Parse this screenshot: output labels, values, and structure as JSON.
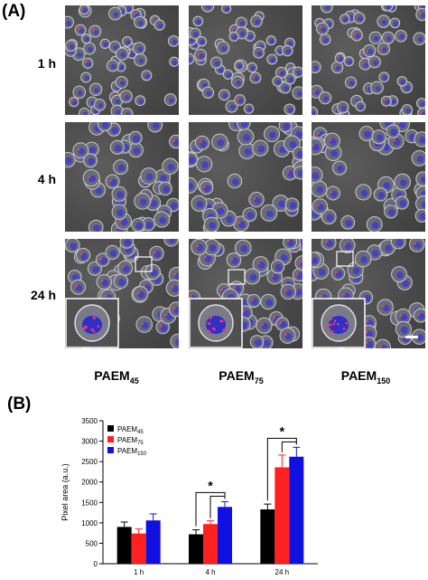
{
  "panel_a": {
    "label": "(A)",
    "row_labels": [
      "1 h",
      "4 h",
      "24 h"
    ],
    "column_labels": [
      {
        "base": "PAEM",
        "sub": "45"
      },
      {
        "base": "PAEM",
        "sub": "75"
      },
      {
        "base": "PAEM",
        "sub": "150"
      }
    ]
  },
  "panel_b": {
    "label": "(B)"
  },
  "chart_data": {
    "type": "bar",
    "categories": [
      "1 h",
      "4 h",
      "24 h"
    ],
    "series": [
      {
        "name": "PAEM45",
        "label_base": "PAEM",
        "label_sub": "45",
        "color": "#000000",
        "values": [
          900,
          720,
          1330
        ],
        "errors": [
          120,
          110,
          130
        ]
      },
      {
        "name": "PAEM75",
        "label_base": "PAEM",
        "label_sub": "75",
        "color": "#ff2020",
        "values": [
          740,
          970,
          2360
        ],
        "errors": [
          110,
          80,
          300
        ]
      },
      {
        "name": "PAEM150",
        "label_base": "PAEM",
        "label_sub": "150",
        "color": "#1010e0",
        "values": [
          1060,
          1390,
          2620
        ],
        "errors": [
          160,
          130,
          230
        ]
      }
    ],
    "ylabel": "Pixel area (a.u.)",
    "ylim": [
      0,
      3500
    ],
    "yticks": [
      0,
      500,
      1000,
      1500,
      2000,
      2500,
      3000,
      3500
    ],
    "legend_position": "top-left",
    "significance": [
      {
        "category": "4 h",
        "symbol": "*"
      },
      {
        "category": "24 h",
        "symbol": "*"
      }
    ]
  }
}
